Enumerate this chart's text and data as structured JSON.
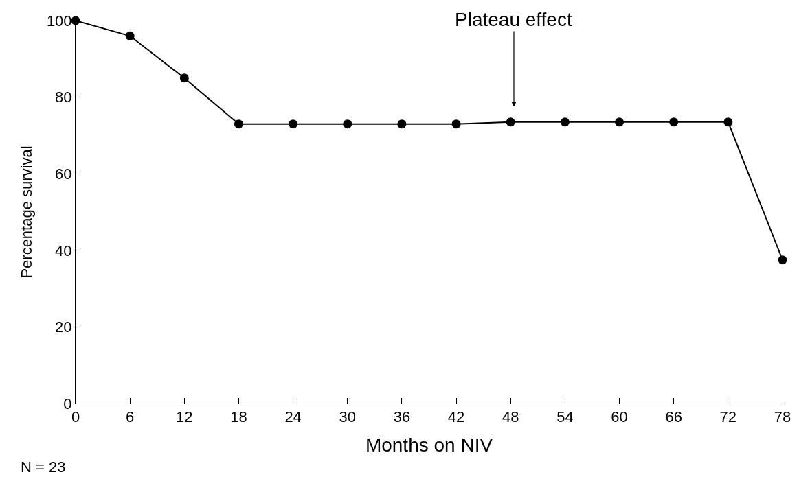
{
  "chart_data": {
    "type": "line",
    "x": [
      0,
      6,
      12,
      18,
      24,
      30,
      36,
      42,
      48,
      54,
      60,
      66,
      72,
      78
    ],
    "values": [
      100,
      96,
      85,
      73,
      73,
      73,
      73,
      73,
      73.5,
      73.5,
      73.5,
      73.5,
      73.5,
      37.5
    ],
    "color": "#000000",
    "marker": "circle",
    "line_style": "solid",
    "xlabel": "Months on NIV",
    "ylabel": "Percentage survival",
    "xlim": [
      0,
      78
    ],
    "xticks": [
      0,
      6,
      12,
      18,
      24,
      30,
      36,
      42,
      48,
      54,
      60,
      66,
      72,
      78
    ],
    "ylim": [
      0,
      100
    ],
    "yticks": [
      0,
      20,
      40,
      60,
      80,
      100
    ],
    "annotations": [
      "Plateau effect",
      "N = 23"
    ]
  }
}
